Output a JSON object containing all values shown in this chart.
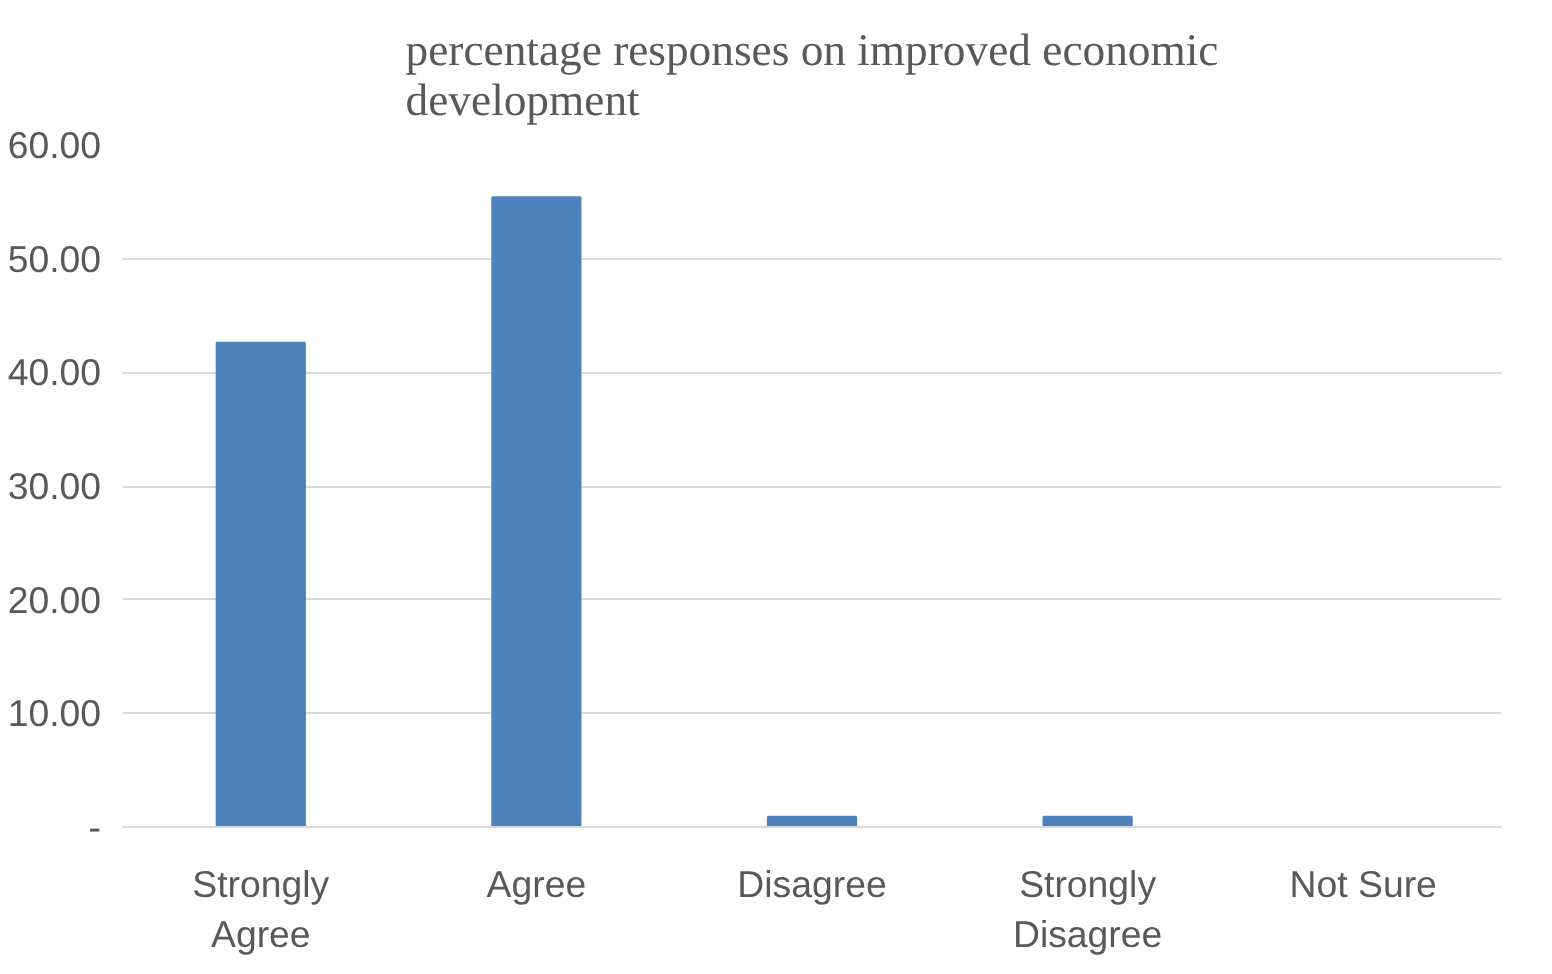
{
  "chart_data": {
    "type": "bar",
    "title": "percentage responses on improved economic development",
    "categories": [
      "Strongly Agree",
      "Agree",
      "Disagree",
      "Strongly Disagree",
      "Not Sure"
    ],
    "values": [
      42.6,
      55.4,
      0.9,
      0.9,
      0
    ],
    "color": "#4f81bd",
    "ylim": [
      0,
      60
    ],
    "yticks": [
      {
        "value": 0,
        "label": "-"
      },
      {
        "value": 10,
        "label": "10.00"
      },
      {
        "value": 20,
        "label": "20.00"
      },
      {
        "value": 30,
        "label": "30.00"
      },
      {
        "value": 40,
        "label": "40.00"
      },
      {
        "value": 50,
        "label": "50.00"
      },
      {
        "value": 60,
        "label": "60.00"
      }
    ],
    "grid": "y"
  }
}
